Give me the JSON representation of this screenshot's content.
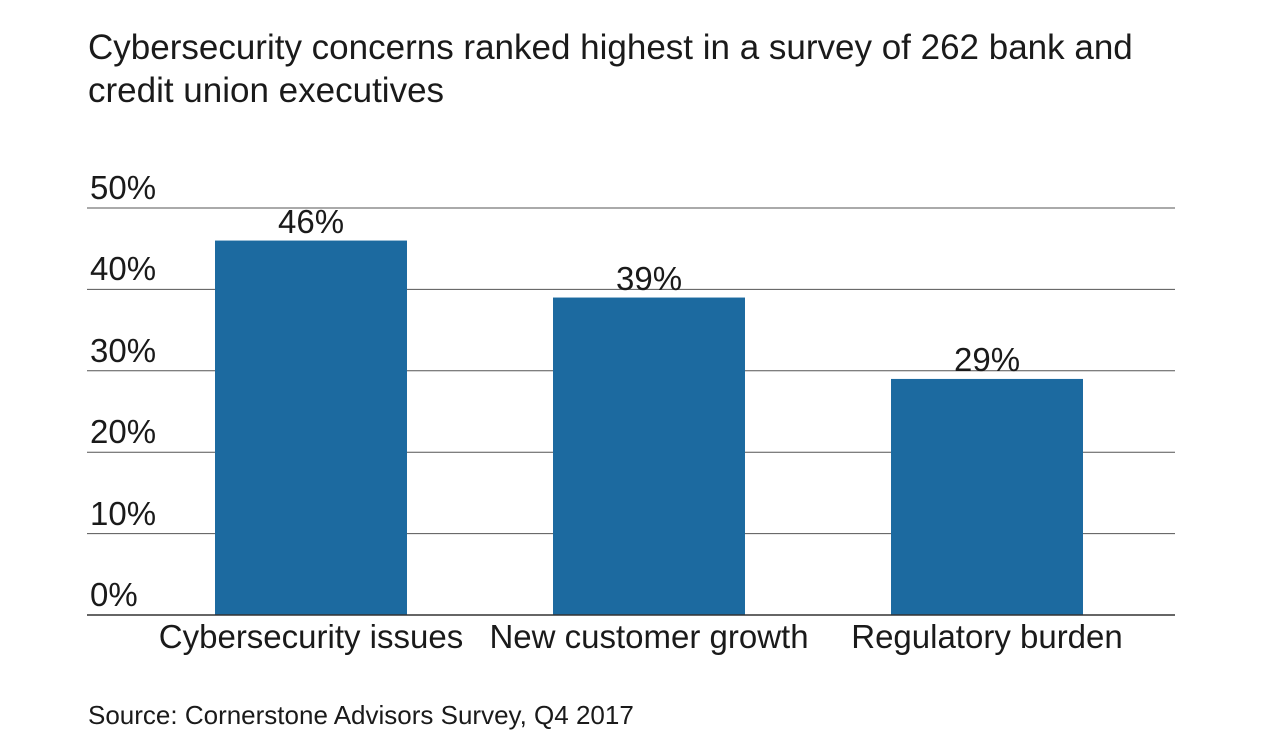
{
  "chart_data": {
    "type": "bar",
    "subtitle": "Cybersecurity concerns ranked highest in a survey of 262 bank and credit union executives",
    "categories": [
      "Cybersecurity issues",
      "New customer growth",
      "Regulatory burden"
    ],
    "values": [
      46,
      39,
      29
    ],
    "value_labels": [
      "46%",
      "39%",
      "29%"
    ],
    "color": "#1c6aa0",
    "ylim": [
      0,
      50
    ],
    "yticks": [
      {
        "value": 0,
        "label": "0%"
      },
      {
        "value": 10,
        "label": "10%"
      },
      {
        "value": 20,
        "label": "20%"
      },
      {
        "value": 30,
        "label": "30%"
      },
      {
        "value": 40,
        "label": "40%"
      },
      {
        "value": 50,
        "label": "50%"
      }
    ],
    "grid": true,
    "source": "Source: Cornerstone Advisors Survey, Q4 2017"
  }
}
